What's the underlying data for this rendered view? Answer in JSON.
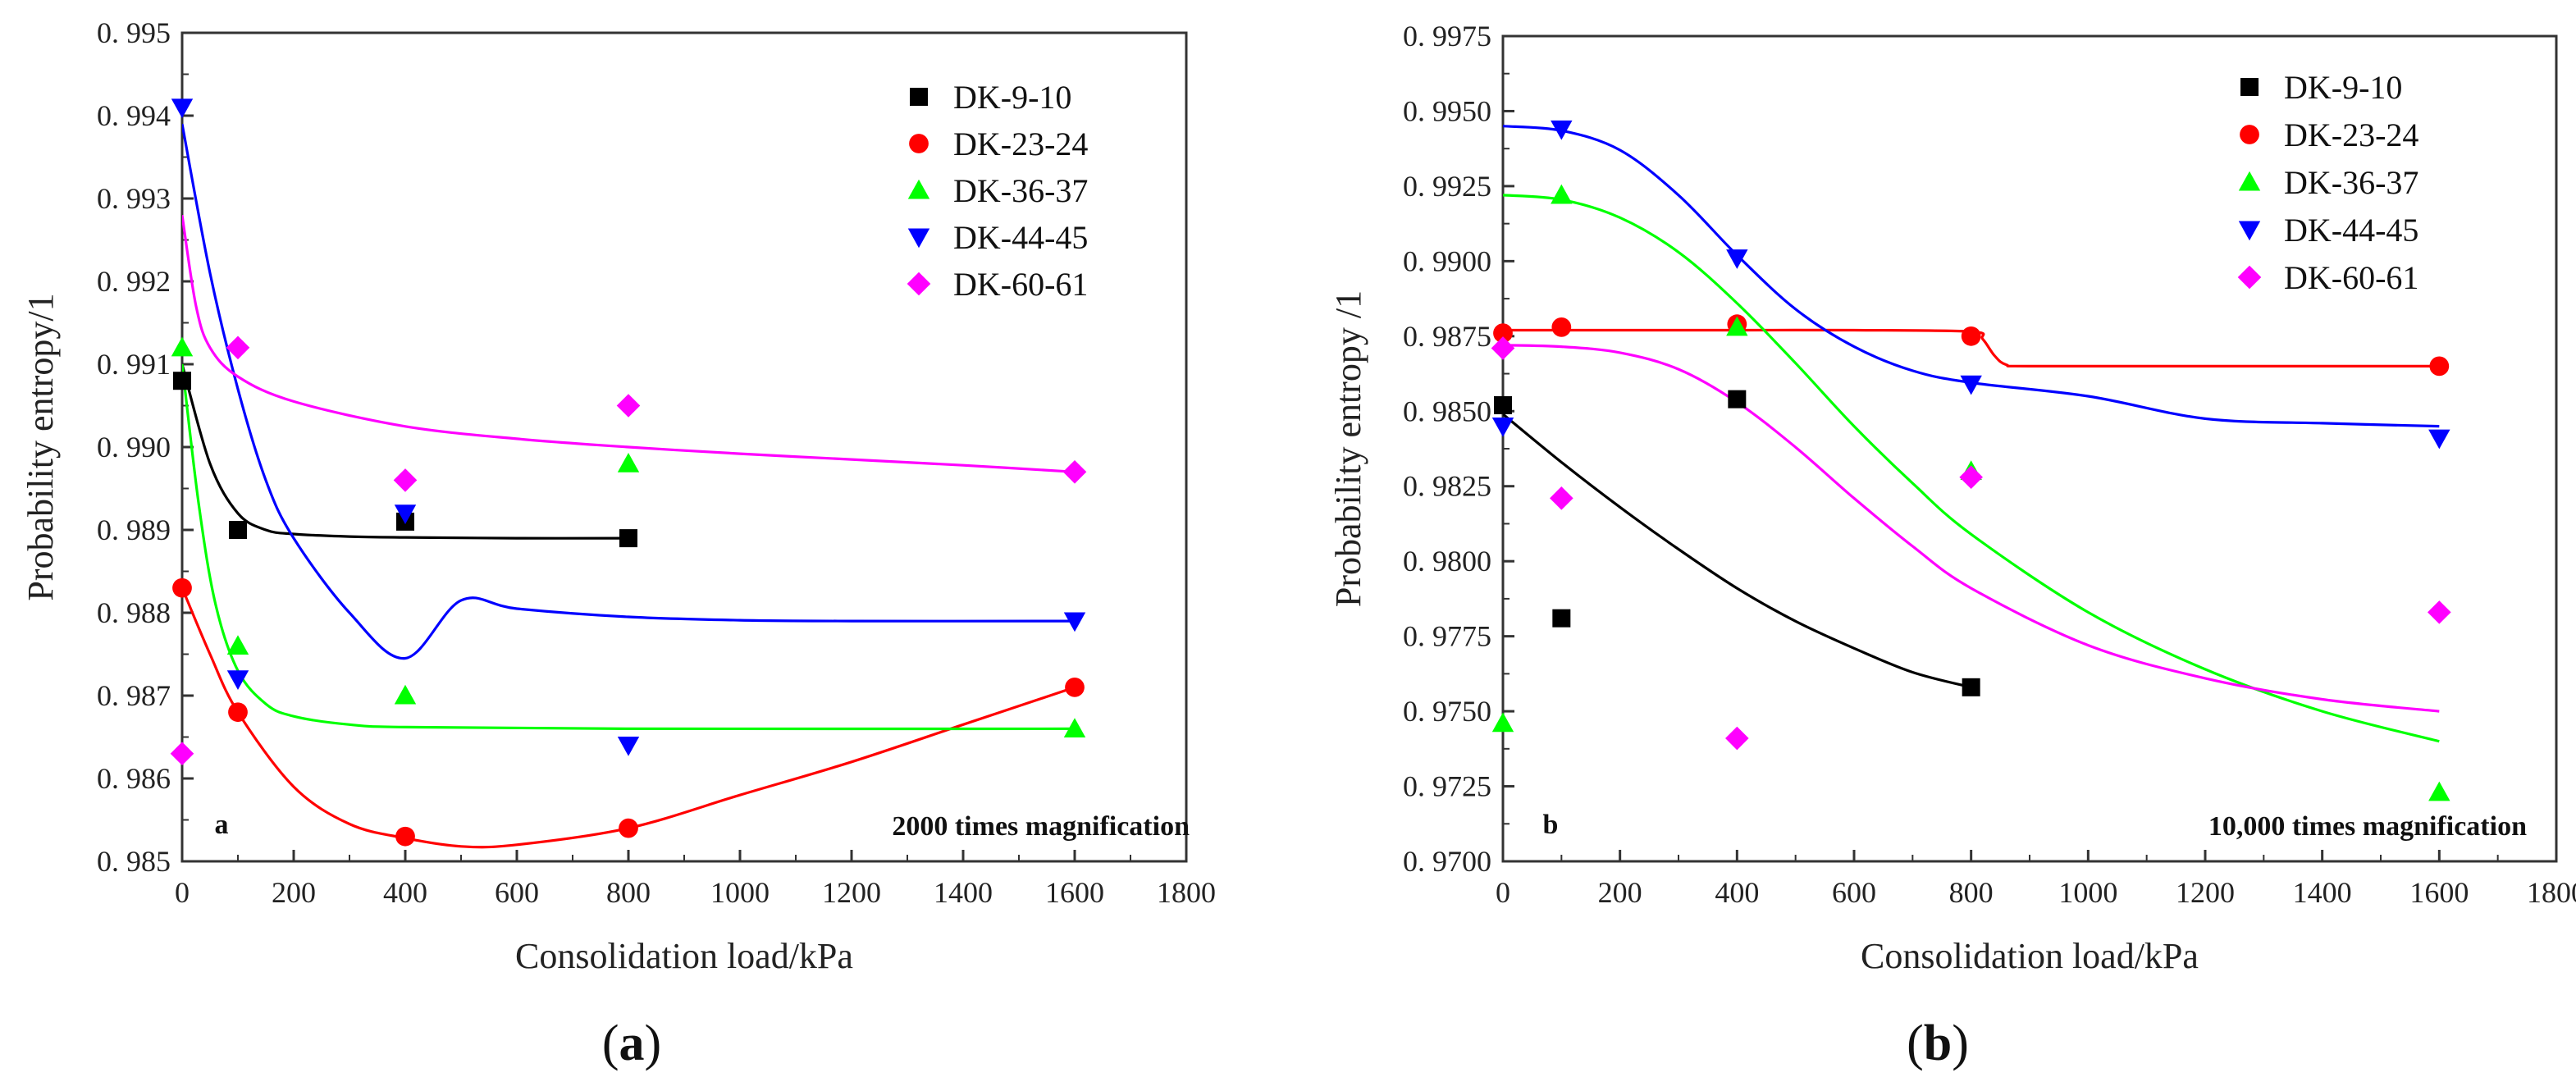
{
  "panels": [
    {
      "caption_open": "(",
      "caption_letter": "a",
      "caption_close": ")"
    },
    {
      "caption_open": "(",
      "caption_letter": "b",
      "caption_close": ")"
    }
  ],
  "chart_data": [
    {
      "type": "scatter",
      "panel_label": "a",
      "annotation": "2000 times magnification",
      "xlabel": "Consolidation load/kPa",
      "ylabel": "Probability entropy/1",
      "xlim": [
        0,
        1800
      ],
      "ylim": [
        0.985,
        0.995
      ],
      "xticks": [
        0,
        200,
        400,
        600,
        800,
        1000,
        1200,
        1400,
        1600,
        1800
      ],
      "xtick_labels": [
        "0",
        "200",
        "400",
        "600",
        "800",
        "1000",
        "1200",
        "1400",
        "1600",
        "1800"
      ],
      "yticks": [
        0.985,
        0.986,
        0.987,
        0.988,
        0.989,
        0.99,
        0.991,
        0.992,
        0.993,
        0.994,
        0.995
      ],
      "ytick_labels": [
        "0. 985",
        "0. 986",
        "0. 987",
        "0. 988",
        "0. 989",
        "0. 990",
        "0. 991",
        "0. 992",
        "0. 993",
        "0. 994",
        "0. 995"
      ],
      "legend_position": "top-right",
      "grid": false,
      "series": [
        {
          "name": "DK-9-10",
          "color": "#000000",
          "marker": "square",
          "points": [
            [
              0,
              0.9908
            ],
            [
              100,
              0.989
            ],
            [
              400,
              0.9891
            ],
            [
              800,
              0.9889
            ]
          ],
          "fit": [
            [
              0,
              0.991
            ],
            [
              50,
              0.9898
            ],
            [
              100,
              0.9892
            ],
            [
              150,
              0.989
            ],
            [
              200,
              0.98895
            ],
            [
              300,
              0.98892
            ],
            [
              400,
              0.98891
            ],
            [
              600,
              0.9889
            ],
            [
              800,
              0.9889
            ]
          ]
        },
        {
          "name": "DK-23-24",
          "color": "#ff0000",
          "marker": "circle",
          "points": [
            [
              0,
              0.9883
            ],
            [
              100,
              0.9868
            ],
            [
              400,
              0.9853
            ],
            [
              800,
              0.9854
            ],
            [
              1600,
              0.9871
            ]
          ],
          "fit": [
            [
              0,
              0.9883
            ],
            [
              50,
              0.9875
            ],
            [
              100,
              0.9868
            ],
            [
              200,
              0.9859
            ],
            [
              300,
              0.98545
            ],
            [
              400,
              0.98528
            ],
            [
              500,
              0.98518
            ],
            [
              600,
              0.9852
            ],
            [
              800,
              0.9854
            ],
            [
              1000,
              0.9858
            ],
            [
              1200,
              0.9862
            ],
            [
              1400,
              0.98665
            ],
            [
              1600,
              0.9871
            ]
          ]
        },
        {
          "name": "DK-36-37",
          "color": "#00ff00",
          "marker": "triangle-up",
          "points": [
            [
              0,
              0.9912
            ],
            [
              100,
              0.9876
            ],
            [
              400,
              0.987
            ],
            [
              800,
              0.9898
            ],
            [
              1600,
              0.9866
            ]
          ],
          "fit": [
            [
              0,
              0.991
            ],
            [
              30,
              0.9893
            ],
            [
              60,
              0.9881
            ],
            [
              100,
              0.9873
            ],
            [
              150,
              0.9869
            ],
            [
              200,
              0.98675
            ],
            [
              300,
              0.98665
            ],
            [
              400,
              0.98662
            ],
            [
              800,
              0.9866
            ],
            [
              1600,
              0.9866
            ]
          ]
        },
        {
          "name": "DK-44-45",
          "color": "#0000ff",
          "marker": "triangle-down",
          "points": [
            [
              0,
              0.9941
            ],
            [
              100,
              0.9872
            ],
            [
              400,
              0.9892
            ],
            [
              800,
              0.9864
            ],
            [
              1600,
              0.9879
            ]
          ],
          "fit": [
            [
              0,
              0.9939
            ],
            [
              50,
              0.9921
            ],
            [
              100,
              0.9907
            ],
            [
              150,
              0.9896
            ],
            [
              200,
              0.9889
            ],
            [
              300,
              0.988
            ],
            [
              400,
              0.98745
            ],
            [
              500,
              0.98815
            ],
            [
              600,
              0.98805
            ],
            [
              800,
              0.98795
            ],
            [
              1000,
              0.98791
            ],
            [
              1200,
              0.9879
            ],
            [
              1600,
              0.9879
            ]
          ]
        },
        {
          "name": "DK-60-61",
          "color": "#ff00ff",
          "marker": "diamond",
          "points": [
            [
              0,
              0.9863
            ],
            [
              100,
              0.9912
            ],
            [
              400,
              0.9896
            ],
            [
              800,
              0.9905
            ],
            [
              1600,
              0.9897
            ]
          ],
          "fit": [
            [
              0,
              0.9928
            ],
            [
              25,
              0.9917
            ],
            [
              50,
              0.9912
            ],
            [
              100,
              0.99085
            ],
            [
              200,
              0.99055
            ],
            [
              400,
              0.99025
            ],
            [
              600,
              0.9901
            ],
            [
              800,
              0.99
            ],
            [
              1000,
              0.98992
            ],
            [
              1200,
              0.98985
            ],
            [
              1400,
              0.98978
            ],
            [
              1600,
              0.9897
            ]
          ]
        }
      ]
    },
    {
      "type": "scatter",
      "panel_label": "b",
      "annotation": "10,000 times magnification",
      "xlabel": "Consolidation load/kPa",
      "ylabel": "Probability entropy /1",
      "xlim": [
        0,
        1800
      ],
      "ylim": [
        0.97,
        0.9975
      ],
      "xticks": [
        0,
        200,
        400,
        600,
        800,
        1000,
        1200,
        1400,
        1600,
        1800
      ],
      "xtick_labels": [
        "0",
        "200",
        "400",
        "600",
        "800",
        "1000",
        "1200",
        "1400",
        "1600",
        "1800"
      ],
      "yticks": [
        0.97,
        0.9725,
        0.975,
        0.9775,
        0.98,
        0.9825,
        0.985,
        0.9875,
        0.99,
        0.9925,
        0.995,
        0.9975
      ],
      "ytick_labels": [
        "0. 9700",
        "0. 9725",
        "0. 9750",
        "0. 9775",
        "0. 9800",
        "0. 9825",
        "0. 9850",
        "0. 9875",
        "0. 9900",
        "0. 9925",
        "0. 9950",
        "0. 9975"
      ],
      "legend_position": "top-right",
      "grid": false,
      "series": [
        {
          "name": "DK-9-10",
          "color": "#000000",
          "marker": "square",
          "points": [
            [
              0,
              0.9852
            ],
            [
              100,
              0.9781
            ],
            [
              400,
              0.9854
            ],
            [
              800,
              0.9758
            ]
          ],
          "fit": [
            [
              0,
              0.9849
            ],
            [
              100,
              0.9833
            ],
            [
              200,
              0.9818
            ],
            [
              300,
              0.9804
            ],
            [
              400,
              0.9791
            ],
            [
              500,
              0.978
            ],
            [
              600,
              0.9771
            ],
            [
              700,
              0.9763
            ],
            [
              800,
              0.9758
            ]
          ]
        },
        {
          "name": "DK-23-24",
          "color": "#ff0000",
          "marker": "circle",
          "points": [
            [
              0,
              0.9876
            ],
            [
              100,
              0.9878
            ],
            [
              400,
              0.9879
            ],
            [
              800,
              0.9875
            ],
            [
              1600,
              0.9865
            ]
          ],
          "fit": [
            [
              0,
              0.9877
            ],
            [
              200,
              0.9877
            ],
            [
              400,
              0.9877
            ],
            [
              600,
              0.9877
            ],
            [
              800,
              0.98765
            ],
            [
              820,
              0.9874
            ],
            [
              840,
              0.98685
            ],
            [
              860,
              0.98655
            ],
            [
              900,
              0.9865
            ],
            [
              1200,
              0.9865
            ],
            [
              1600,
              0.9865
            ]
          ]
        },
        {
          "name": "DK-36-37",
          "color": "#00ff00",
          "marker": "triangle-up",
          "points": [
            [
              0,
              0.9746
            ],
            [
              100,
              0.9922
            ],
            [
              400,
              0.9878
            ],
            [
              800,
              0.983
            ],
            [
              1600,
              0.9723
            ]
          ],
          "fit": [
            [
              0,
              0.9922
            ],
            [
              100,
              0.99205
            ],
            [
              200,
              0.99145
            ],
            [
              300,
              0.9903
            ],
            [
              400,
              0.9886
            ],
            [
              500,
              0.9866
            ],
            [
              600,
              0.9845
            ],
            [
              700,
              0.9826
            ],
            [
              800,
              0.9809
            ],
            [
              1000,
              0.9783
            ],
            [
              1200,
              0.9764
            ],
            [
              1400,
              0.975
            ],
            [
              1600,
              0.974
            ]
          ]
        },
        {
          "name": "DK-44-45",
          "color": "#0000ff",
          "marker": "triangle-down",
          "points": [
            [
              0,
              0.9845
            ],
            [
              100,
              0.9944
            ],
            [
              400,
              0.9901
            ],
            [
              800,
              0.9859
            ],
            [
              1600,
              0.9841
            ]
          ],
          "fit": [
            [
              0,
              0.9945
            ],
            [
              100,
              0.99435
            ],
            [
              200,
              0.9937
            ],
            [
              300,
              0.9922
            ],
            [
              400,
              0.9902
            ],
            [
              500,
              0.9884
            ],
            [
              600,
              0.98715
            ],
            [
              700,
              0.98635
            ],
            [
              800,
              0.98595
            ],
            [
              1000,
              0.9855
            ],
            [
              1200,
              0.98475
            ],
            [
              1400,
              0.9846
            ],
            [
              1600,
              0.9845
            ]
          ]
        },
        {
          "name": "DK-60-61",
          "color": "#ff00ff",
          "marker": "diamond",
          "points": [
            [
              0,
              0.9871
            ],
            [
              100,
              0.9821
            ],
            [
              400,
              0.9741
            ],
            [
              800,
              0.9828
            ],
            [
              1600,
              0.9783
            ]
          ],
          "fit": [
            [
              0,
              0.9872
            ],
            [
              100,
              0.98715
            ],
            [
              200,
              0.98695
            ],
            [
              300,
              0.9864
            ],
            [
              400,
              0.9853
            ],
            [
              500,
              0.9838
            ],
            [
              600,
              0.9821
            ],
            [
              700,
              0.9805
            ],
            [
              800,
              0.9791
            ],
            [
              1000,
              0.9772
            ],
            [
              1200,
              0.9761
            ],
            [
              1400,
              0.9754
            ],
            [
              1600,
              0.975
            ]
          ]
        }
      ]
    }
  ]
}
